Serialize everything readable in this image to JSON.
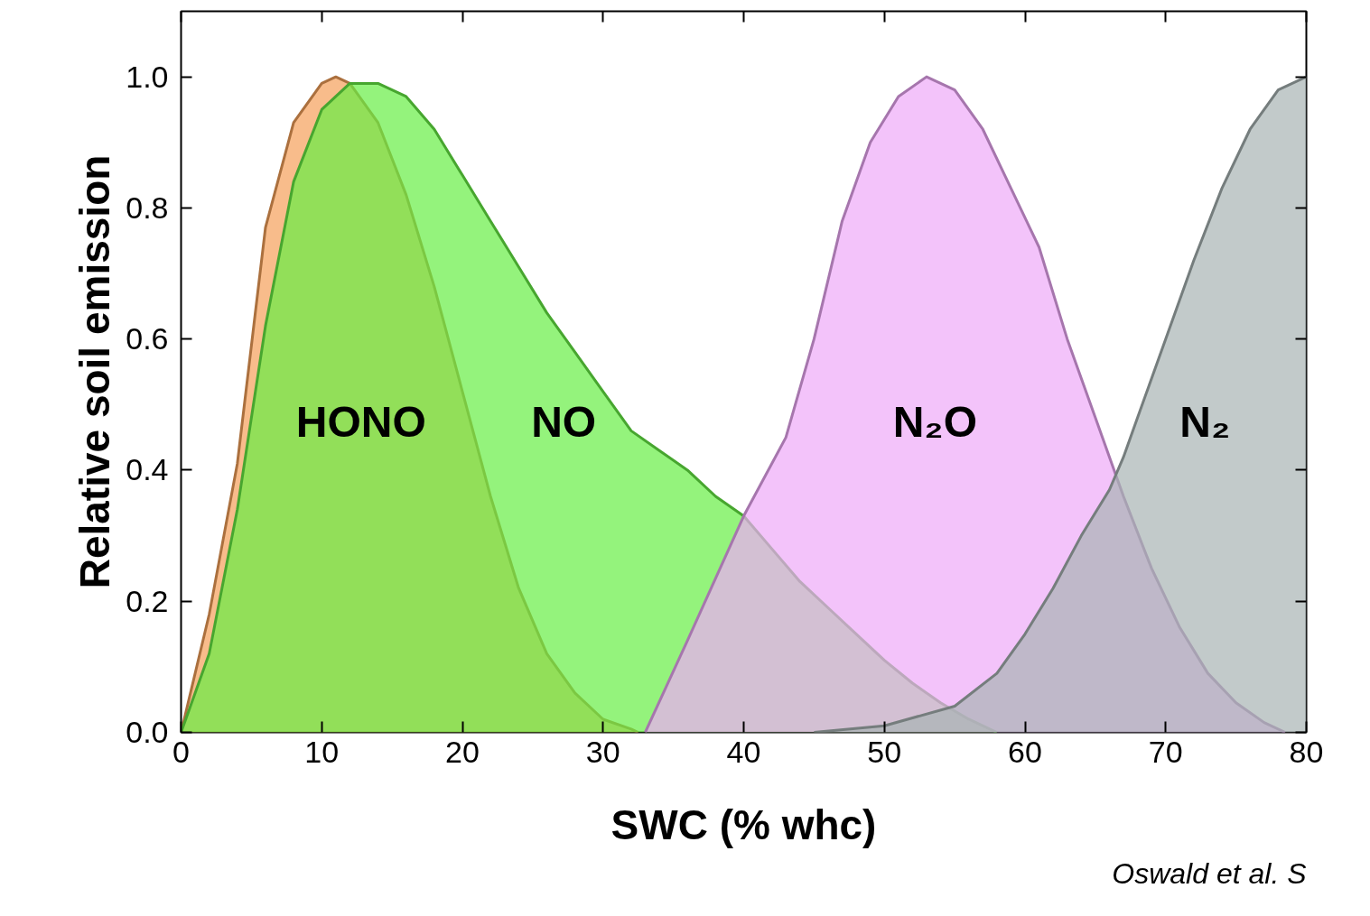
{
  "chart_data": {
    "type": "area",
    "xlabel": "SWC (% whc)",
    "ylabel": "Relative soil emission",
    "xlim": [
      0,
      80
    ],
    "ylim": [
      0,
      1.1
    ],
    "xticks": [
      0,
      10,
      20,
      30,
      40,
      50,
      60,
      70,
      80
    ],
    "yticks": [
      {
        "value": 0,
        "label": "0.0"
      },
      0.2,
      0.4,
      0.6,
      0.8,
      {
        "value": 1,
        "label": "1.0"
      }
    ],
    "annotations": [
      "Oswald et al. S"
    ],
    "series": [
      {
        "name": "HONO",
        "color": "#f5a05a",
        "x": [
          0,
          2,
          4,
          6,
          8,
          10,
          11,
          12,
          14,
          16,
          18,
          20,
          22,
          24,
          26,
          28,
          30,
          32,
          32.5
        ],
        "values": [
          0,
          0.18,
          0.41,
          0.77,
          0.93,
          0.99,
          1.0,
          0.99,
          0.93,
          0.82,
          0.68,
          0.52,
          0.36,
          0.22,
          0.12,
          0.06,
          0.02,
          0.005,
          0
        ]
      },
      {
        "name": "NO",
        "color": "#66ee44",
        "x": [
          0,
          2,
          4,
          6,
          8,
          10,
          12,
          14,
          16,
          18,
          20,
          22,
          24,
          26,
          28,
          30,
          32,
          34,
          36,
          38,
          40,
          42,
          44,
          46,
          48,
          50,
          52,
          54,
          56,
          58
        ],
        "values": [
          0,
          0.12,
          0.34,
          0.62,
          0.84,
          0.95,
          0.99,
          0.99,
          0.97,
          0.92,
          0.85,
          0.78,
          0.71,
          0.64,
          0.58,
          0.52,
          0.46,
          0.43,
          0.4,
          0.36,
          0.33,
          0.28,
          0.23,
          0.19,
          0.15,
          0.11,
          0.075,
          0.045,
          0.02,
          0
        ]
      },
      {
        "name": "N₂O",
        "color": "#eeaaf8",
        "x": [
          33,
          36,
          40,
          43,
          45,
          47,
          49,
          51,
          53,
          55,
          57,
          59,
          61,
          63,
          65,
          67,
          69,
          71,
          73,
          75,
          77,
          78.5
        ],
        "values": [
          0,
          0.14,
          0.33,
          0.45,
          0.6,
          0.78,
          0.9,
          0.97,
          1.0,
          0.98,
          0.92,
          0.83,
          0.74,
          0.6,
          0.48,
          0.36,
          0.25,
          0.16,
          0.09,
          0.045,
          0.015,
          0
        ]
      },
      {
        "name": "N₂",
        "color": "#a8b4b4",
        "x": [
          45,
          50,
          55,
          58,
          60,
          62,
          64,
          66,
          67,
          68,
          70,
          72,
          74,
          76,
          78,
          80
        ],
        "values": [
          0,
          0.01,
          0.04,
          0.09,
          0.15,
          0.22,
          0.3,
          0.37,
          0.42,
          0.48,
          0.6,
          0.72,
          0.83,
          0.92,
          0.98,
          1.0
        ]
      }
    ]
  }
}
